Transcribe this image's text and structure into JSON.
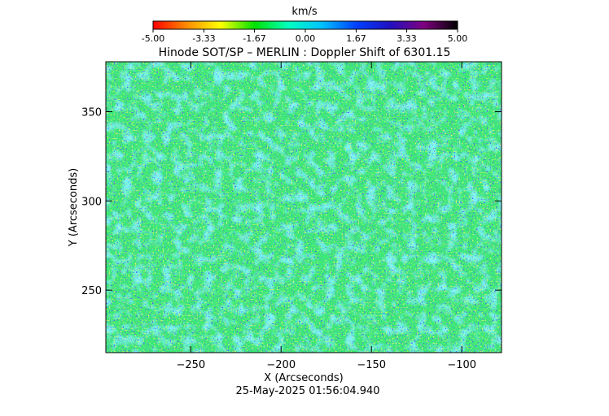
{
  "colorbar": {
    "unit": "km/s",
    "ticks": [
      "-5.00",
      "-3.33",
      "-1.67",
      "0.00",
      "1.67",
      "3.33",
      "5.00"
    ],
    "range": [
      -5.0,
      5.0
    ],
    "colormap": [
      "#ff0000",
      "#ff8c00",
      "#ffff00",
      "#00e000",
      "#00ffc0",
      "#00c0ff",
      "#0040ff",
      "#2010c0",
      "#800080",
      "#000000"
    ]
  },
  "chart_data": {
    "type": "heatmap",
    "title": "Hinode SOT/SP – MERLIN : Doppler Shift of 6301.15",
    "xlabel": "X (Arcseconds)",
    "ylabel": "Y (Arcseconds)",
    "xlim": [
      -297,
      -78
    ],
    "ylim": [
      215,
      378
    ],
    "xticks": [
      -250,
      -200,
      -150,
      -100
    ],
    "yticks": [
      250,
      300,
      350
    ],
    "value_unit": "km/s",
    "value_range": [
      -5.0,
      5.0
    ],
    "typical_value": 0.6,
    "timestamp": "25-May-2025 01:56:04.940"
  }
}
